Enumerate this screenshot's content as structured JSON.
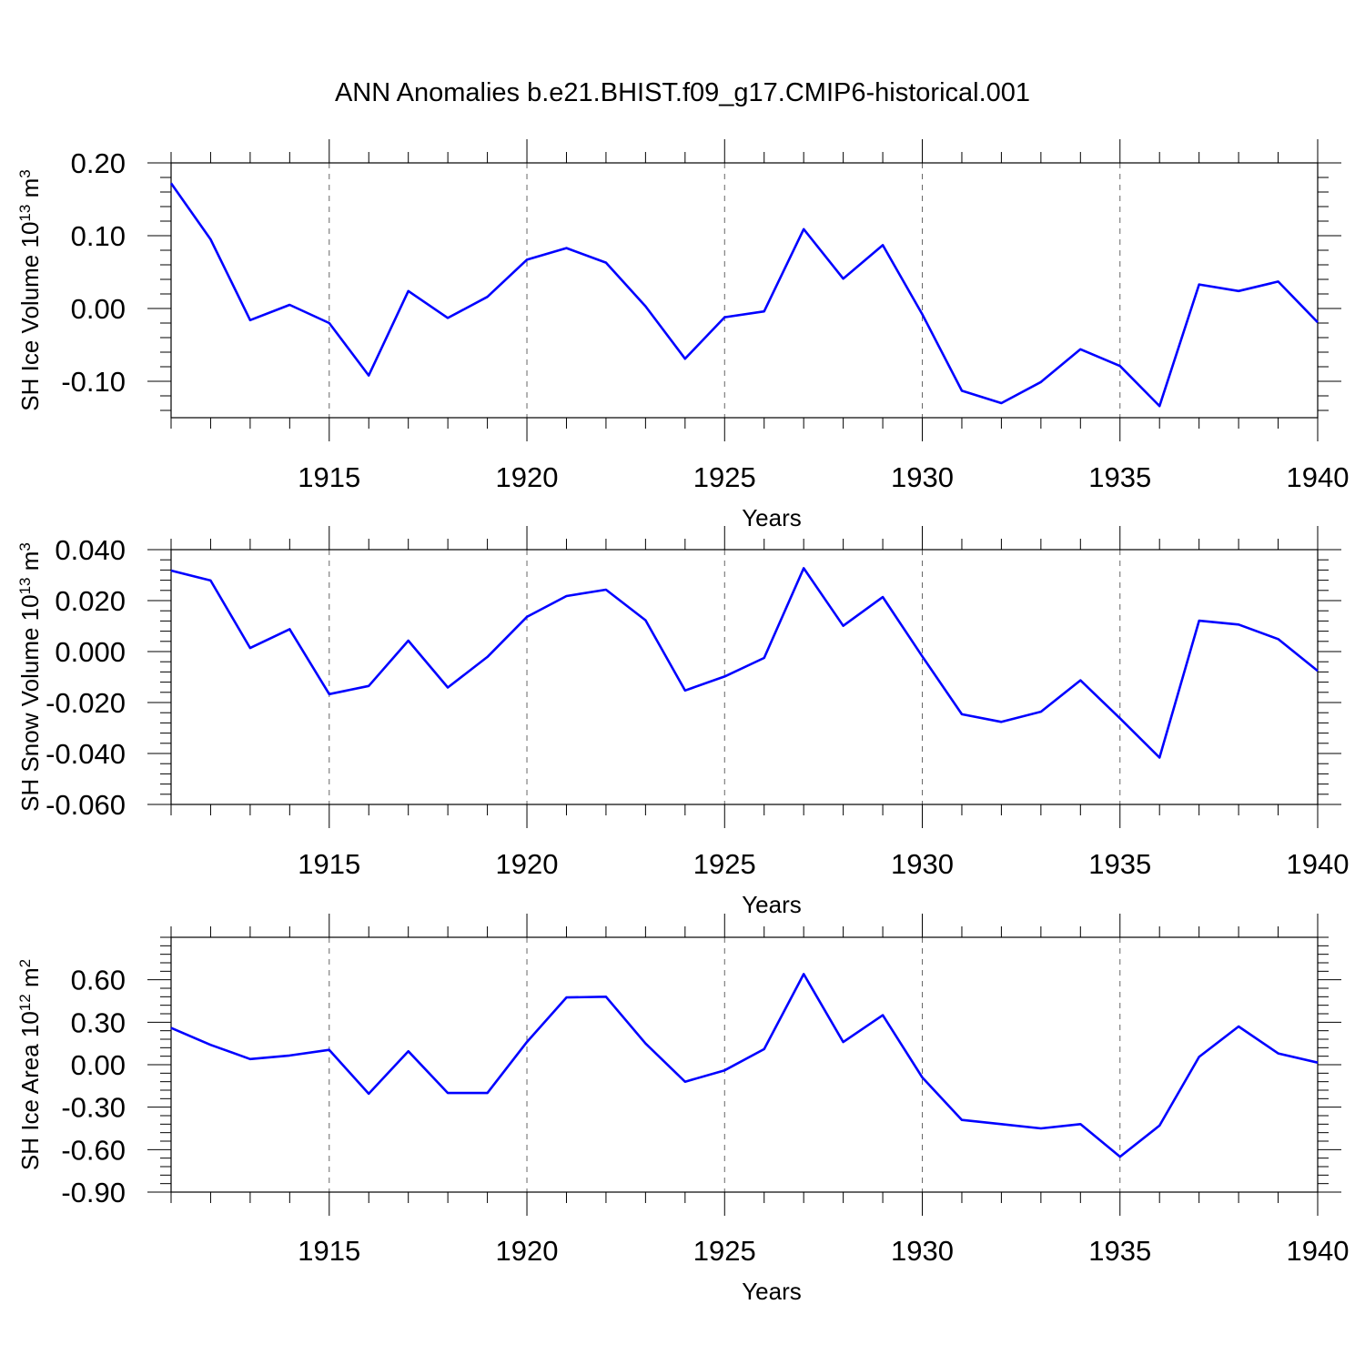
{
  "chart_data": [
    {
      "type": "line",
      "title": "ANN Anomalies b.e21.BHIST.f09_g17.CMIP6-historical.001",
      "xlabel": "Years",
      "ylabel": "SH Ice Volume 10",
      "ylabel_exp": "13",
      "ylabel_unit": " m",
      "ylabel_unit_exp": "3",
      "xlim": [
        1911,
        1940
      ],
      "ylim": [
        -0.15,
        0.2
      ],
      "yticks": [
        -0.1,
        0.0,
        0.1,
        0.2
      ],
      "ytick_labels": [
        "-0.10",
        "0.00",
        "0.10",
        "0.20"
      ],
      "xticks": [
        1915,
        1920,
        1925,
        1930,
        1935,
        1940
      ],
      "xtick_labels": [
        "1915",
        "1920",
        "1925",
        "1930",
        "1935",
        "1940"
      ],
      "line_color": "#0000ff",
      "x": [
        1911,
        1912,
        1913,
        1914,
        1915,
        1916,
        1917,
        1918,
        1919,
        1920,
        1921,
        1922,
        1923,
        1924,
        1925,
        1926,
        1927,
        1928,
        1929,
        1930,
        1931,
        1932,
        1933,
        1934,
        1935,
        1936,
        1937,
        1938,
        1939,
        1940
      ],
      "values": [
        0.172,
        0.095,
        -0.016,
        0.005,
        -0.02,
        -0.092,
        0.024,
        -0.013,
        0.016,
        0.067,
        0.083,
        0.063,
        0.003,
        -0.069,
        -0.012,
        -0.004,
        0.109,
        0.041,
        0.087,
        -0.008,
        -0.113,
        -0.13,
        -0.101,
        -0.056,
        -0.079,
        -0.134,
        0.033,
        0.024,
        0.037,
        -0.019
      ]
    },
    {
      "type": "line",
      "xlabel": "Years",
      "ylabel": "SH Snow Volume 10",
      "ylabel_exp": "13",
      "ylabel_unit": " m",
      "ylabel_unit_exp": "3",
      "xlim": [
        1911,
        1940
      ],
      "ylim": [
        -0.06,
        0.04
      ],
      "yticks": [
        -0.06,
        -0.04,
        -0.02,
        0.0,
        0.02,
        0.04
      ],
      "ytick_labels": [
        "-0.060",
        "-0.040",
        "-0.020",
        "0.000",
        "0.020",
        "0.040"
      ],
      "xticks": [
        1915,
        1920,
        1925,
        1930,
        1935,
        1940
      ],
      "xtick_labels": [
        "1915",
        "1920",
        "1925",
        "1930",
        "1935",
        "1940"
      ],
      "line_color": "#0000ff",
      "x": [
        1911,
        1912,
        1913,
        1914,
        1915,
        1916,
        1917,
        1918,
        1919,
        1920,
        1921,
        1922,
        1923,
        1924,
        1925,
        1926,
        1927,
        1928,
        1929,
        1930,
        1931,
        1932,
        1933,
        1934,
        1935,
        1936,
        1937,
        1938,
        1939,
        1940
      ],
      "values": [
        0.0318,
        0.0279,
        0.0014,
        0.0088,
        -0.0167,
        -0.0135,
        0.0043,
        -0.0141,
        -0.0021,
        0.0136,
        0.0218,
        0.0243,
        0.0123,
        -0.0153,
        -0.0098,
        -0.0025,
        0.0327,
        0.0101,
        0.0214,
        -0.0019,
        -0.0246,
        -0.0276,
        -0.0236,
        -0.0113,
        -0.0262,
        -0.0416,
        0.0121,
        0.0106,
        0.0049,
        -0.0076
      ]
    },
    {
      "type": "line",
      "xlabel": "Years",
      "ylabel": "SH Ice Area 10",
      "ylabel_exp": "12",
      "ylabel_unit": " m",
      "ylabel_unit_exp": "2",
      "xlim": [
        1911,
        1940
      ],
      "ylim": [
        -0.9,
        0.9
      ],
      "yticks": [
        -0.9,
        -0.6,
        -0.3,
        0.0,
        0.3,
        0.6
      ],
      "ytick_labels": [
        "-0.90",
        "-0.60",
        "-0.30",
        "0.00",
        "0.30",
        "0.60"
      ],
      "xticks": [
        1915,
        1920,
        1925,
        1930,
        1935,
        1940
      ],
      "xtick_labels": [
        "1915",
        "1920",
        "1925",
        "1930",
        "1935",
        "1940"
      ],
      "line_color": "#0000ff",
      "x": [
        1911,
        1912,
        1913,
        1914,
        1915,
        1916,
        1917,
        1918,
        1919,
        1920,
        1921,
        1922,
        1923,
        1924,
        1925,
        1926,
        1927,
        1928,
        1929,
        1930,
        1931,
        1932,
        1933,
        1934,
        1935,
        1936,
        1937,
        1938,
        1939,
        1940
      ],
      "values": [
        0.26,
        0.14,
        0.04,
        0.065,
        0.105,
        -0.205,
        0.095,
        -0.2,
        -0.2,
        0.16,
        0.475,
        0.48,
        0.15,
        -0.12,
        -0.04,
        0.11,
        0.64,
        0.16,
        0.35,
        -0.09,
        -0.39,
        -0.42,
        -0.45,
        -0.42,
        -0.65,
        -0.43,
        0.055,
        0.27,
        0.08,
        0.015
      ]
    }
  ]
}
